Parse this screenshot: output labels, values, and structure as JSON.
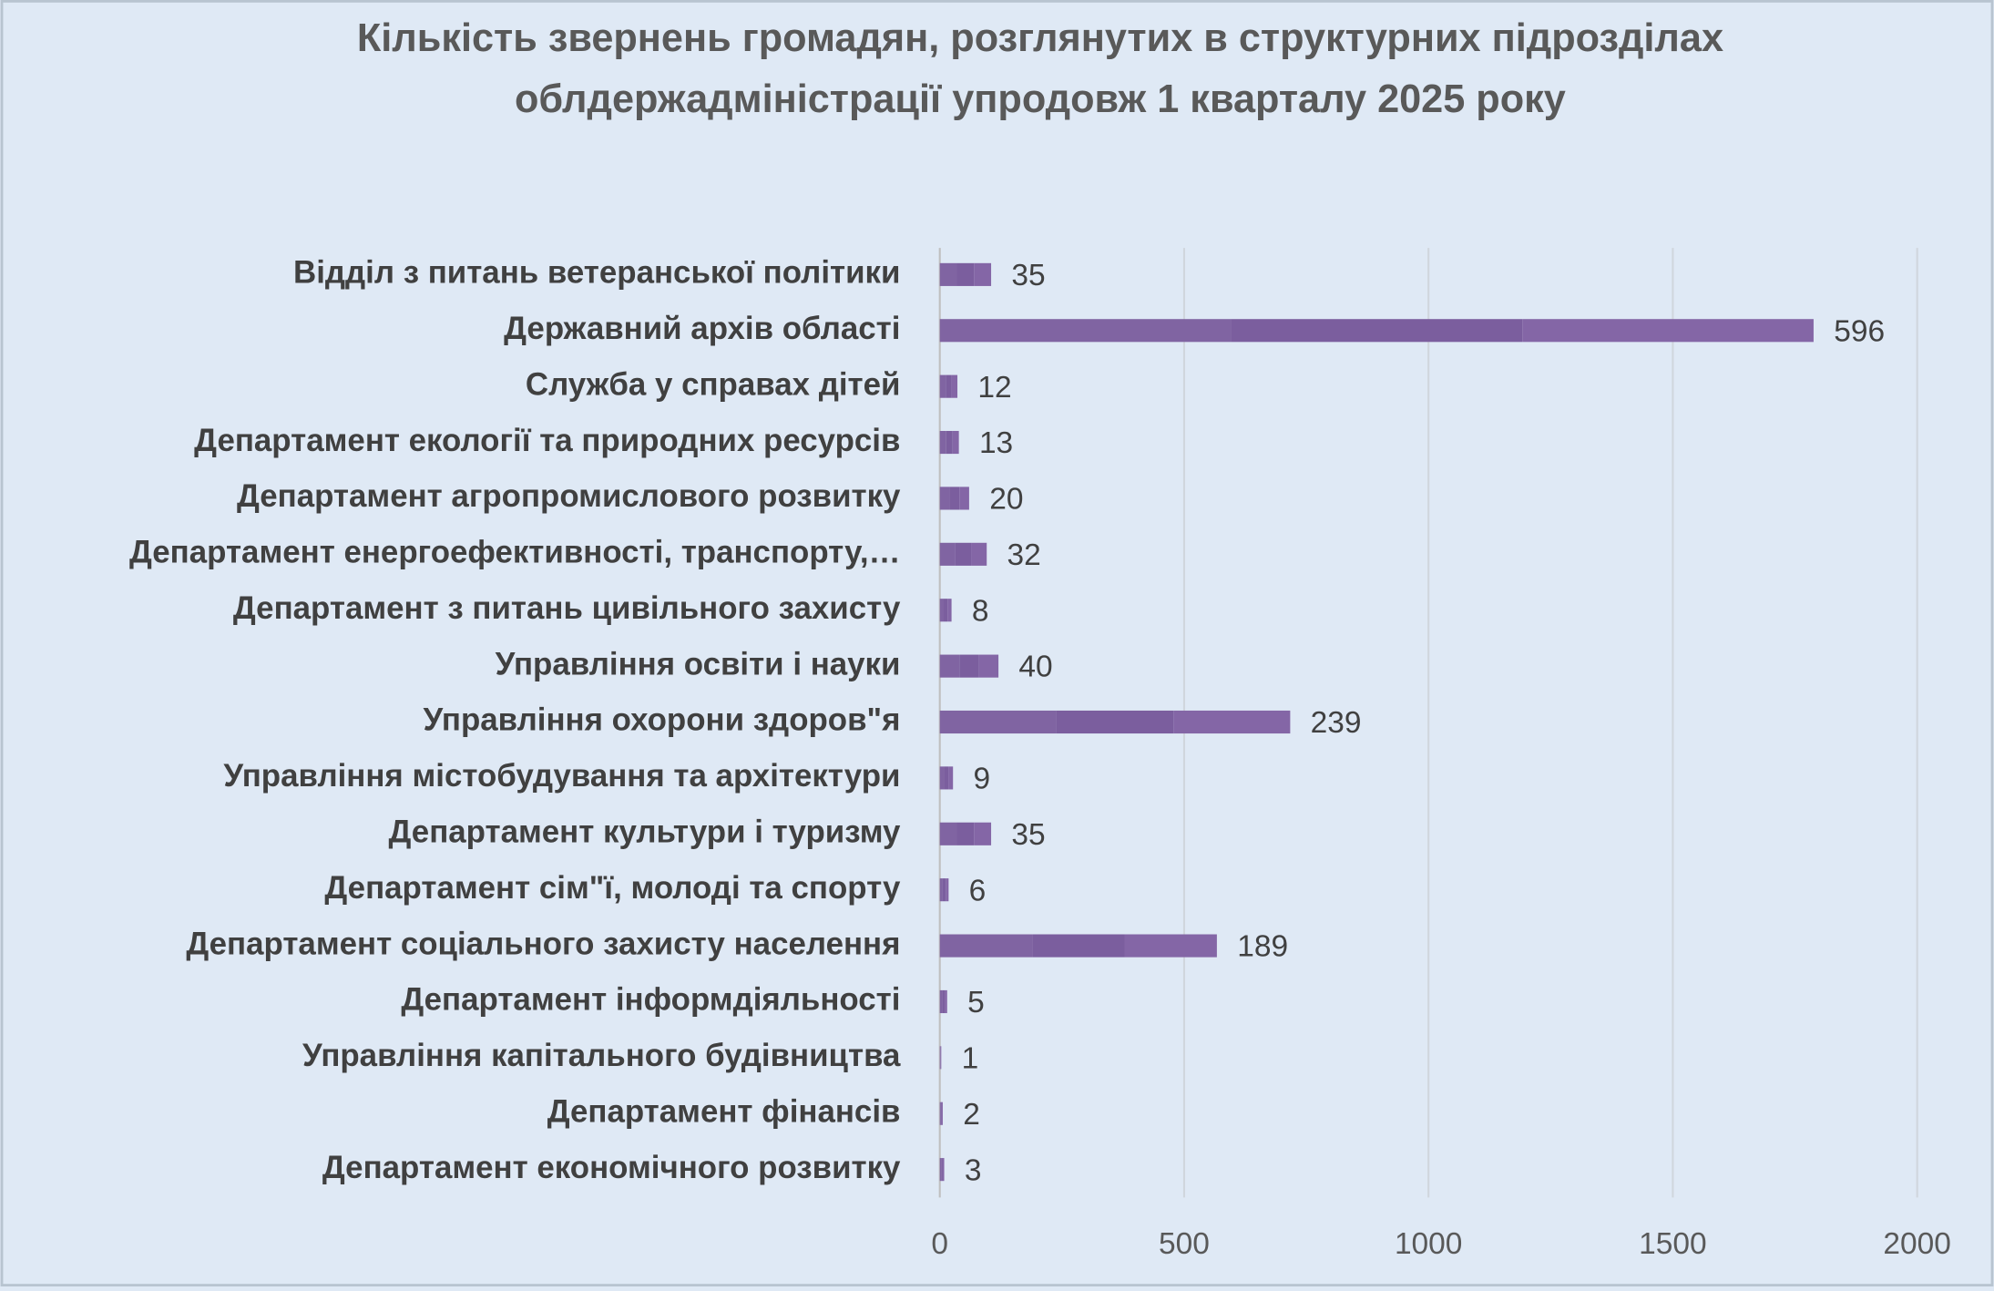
{
  "chart_data": {
    "type": "stacked-barh",
    "title": [
      "Кількість звернень громадян, розглянутих в структурних підрозділах",
      "облдержадміністрації упродовж  1 кварталу 2025 року"
    ],
    "categories": [
      "Відділ з питань ветеранської політики",
      "Державний архів області",
      "Служба у справах дітей",
      "Департамент екології та природних ресурсів",
      "Департамент агропромислового розвитку",
      "Департамент енергоефективності, транспорту,…",
      "Департамент з питань цивільного захисту",
      "Управління освіти і науки",
      "Управління охорони здоров\"я",
      "Управління містобудування та архітектури",
      "Департамент культури і туризму",
      "Департамент сім\"ї, молоді та спорту",
      "Департамент соціального захисту населення",
      "Департамент інформдіяльності",
      "Управління капітального будівництва",
      "Департамент фінансів",
      "Департамент економічного розвитку"
    ],
    "series": [
      {
        "color": "#8064a2",
        "values": [
          35,
          596,
          12,
          13,
          20,
          32,
          8,
          40,
          239,
          9,
          35,
          6,
          189,
          5,
          1,
          2,
          3
        ]
      },
      {
        "color": "#7b5e9e",
        "values": [
          35,
          596,
          12,
          13,
          20,
          32,
          8,
          40,
          239,
          9,
          35,
          6,
          189,
          5,
          1,
          2,
          3
        ]
      },
      {
        "color": "#8466a6",
        "values": [
          35,
          596,
          12,
          13,
          20,
          32,
          8,
          40,
          239,
          9,
          35,
          6,
          189,
          5,
          1,
          2,
          3
        ]
      }
    ],
    "xlim": [
      0,
      2000
    ],
    "xticks": [
      0,
      500,
      1000,
      1500,
      2000
    ],
    "grid": true
  }
}
